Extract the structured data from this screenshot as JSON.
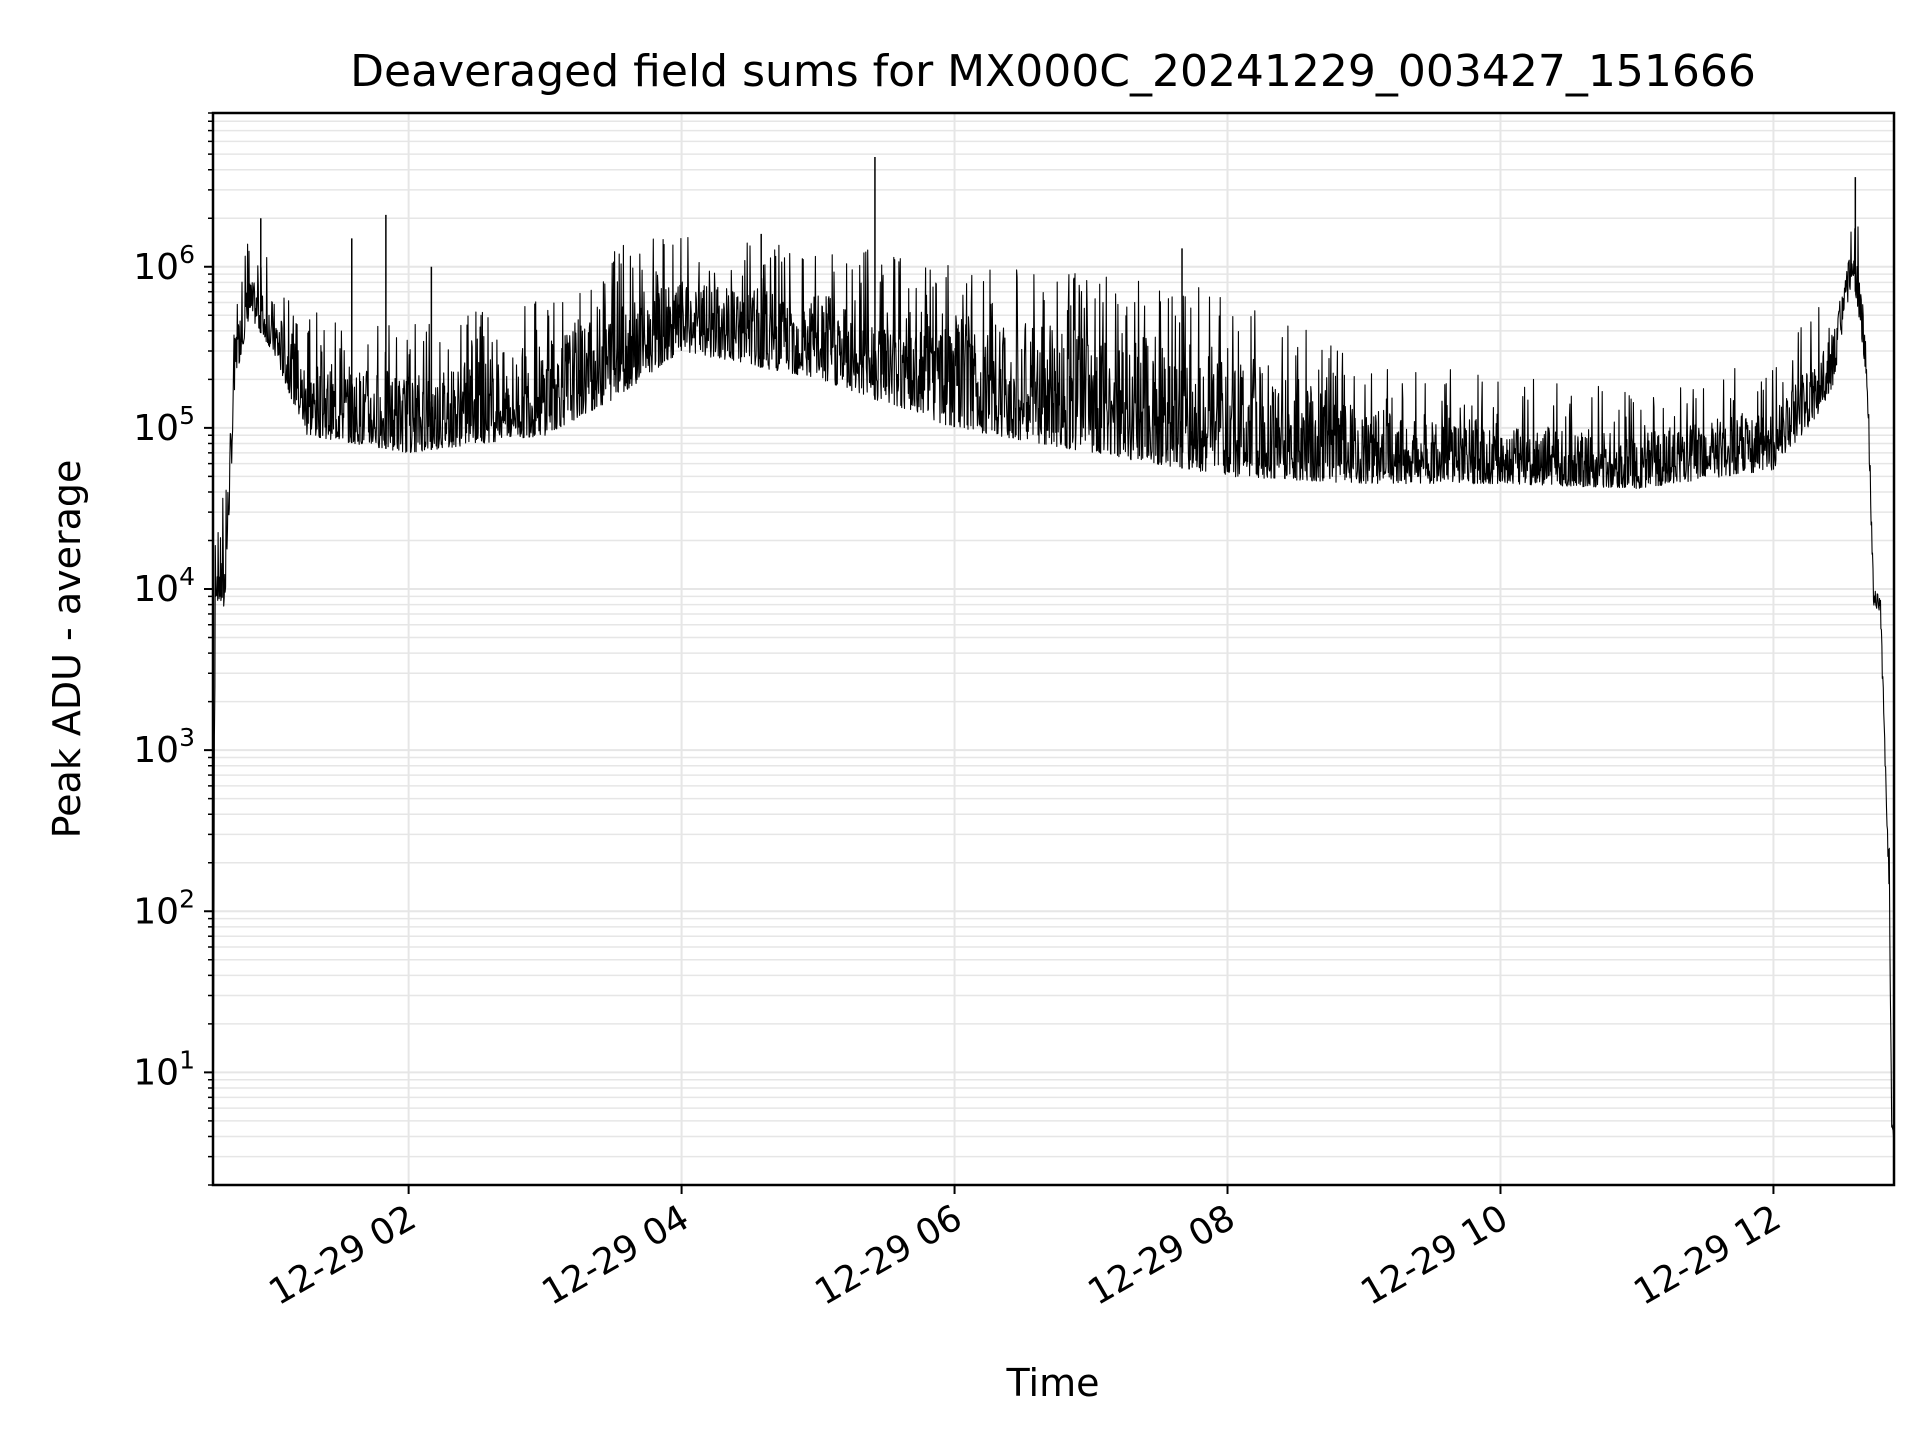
{
  "chart_data": {
    "type": "line",
    "title": "Deaveraged field sums for MX000C_20241229_003427_151666",
    "xlabel": "Time",
    "ylabel": "Peak ADU - average",
    "y_scale": "log",
    "ylim": [
      2,
      9000000
    ],
    "xlim": [
      "2024-12-29 00:34",
      "2024-12-29 12:53"
    ],
    "grid": "both-major-and-minor",
    "line_color": "#000000",
    "grid_color": "#e6e6e6",
    "x_ticks": [
      {
        "value": "2024-12-29 02:00",
        "label": "12-29 02"
      },
      {
        "value": "2024-12-29 04:00",
        "label": "12-29 04"
      },
      {
        "value": "2024-12-29 06:00",
        "label": "12-29 06"
      },
      {
        "value": "2024-12-29 08:00",
        "label": "12-29 08"
      },
      {
        "value": "2024-12-29 10:00",
        "label": "12-29 10"
      },
      {
        "value": "2024-12-29 12:00",
        "label": "12-29 12"
      }
    ],
    "y_ticks": [
      {
        "value": 10,
        "base": "10",
        "exp": "1"
      },
      {
        "value": 100,
        "base": "10",
        "exp": "2"
      },
      {
        "value": 1000,
        "base": "10",
        "exp": "3"
      },
      {
        "value": 10000,
        "base": "10",
        "exp": "4"
      },
      {
        "value": 100000,
        "base": "10",
        "exp": "5"
      },
      {
        "value": 1000000,
        "base": "10",
        "exp": "6"
      }
    ],
    "series": [
      {
        "envelope": [
          {
            "x": "2024-12-29 00:34",
            "low": 2,
            "high": 2
          },
          {
            "x": "2024-12-29 00:35",
            "low": 9000,
            "high": 30000
          },
          {
            "x": "2024-12-29 00:39",
            "low": 7000,
            "high": 20000
          },
          {
            "x": "2024-12-29 00:44",
            "low": 200000,
            "high": 500000
          },
          {
            "x": "2024-12-29 00:50",
            "low": 500000,
            "high": 900000
          },
          {
            "x": "2024-12-29 01:00",
            "low": 300000,
            "high": 700000
          },
          {
            "x": "2024-12-29 01:15",
            "low": 90000,
            "high": 300000
          },
          {
            "x": "2024-12-29 02:00",
            "low": 70000,
            "high": 250000
          },
          {
            "x": "2024-12-29 03:00",
            "low": 90000,
            "high": 400000
          },
          {
            "x": "2024-12-29 03:30",
            "low": 150000,
            "high": 800000
          },
          {
            "x": "2024-12-29 04:00",
            "low": 300000,
            "high": 900000
          },
          {
            "x": "2024-12-29 05:00",
            "low": 200000,
            "high": 800000
          },
          {
            "x": "2024-12-29 06:00",
            "low": 100000,
            "high": 600000
          },
          {
            "x": "2024-12-29 07:00",
            "low": 70000,
            "high": 500000
          },
          {
            "x": "2024-12-29 08:00",
            "low": 50000,
            "high": 400000
          },
          {
            "x": "2024-12-29 09:00",
            "low": 45000,
            "high": 150000
          },
          {
            "x": "2024-12-29 10:00",
            "low": 45000,
            "high": 120000
          },
          {
            "x": "2024-12-29 11:00",
            "low": 42000,
            "high": 100000
          },
          {
            "x": "2024-12-29 12:00",
            "low": 55000,
            "high": 150000
          },
          {
            "x": "2024-12-29 12:25",
            "low": 150000,
            "high": 400000
          },
          {
            "x": "2024-12-29 12:35",
            "low": 900000,
            "high": 1500000
          },
          {
            "x": "2024-12-29 12:41",
            "low": 200000,
            "high": 500000
          },
          {
            "x": "2024-12-29 12:44",
            "low": 8000,
            "high": 10000
          },
          {
            "x": "2024-12-29 12:47",
            "low": 7000,
            "high": 9000
          },
          {
            "x": "2024-12-29 12:51",
            "low": 100,
            "high": 200
          },
          {
            "x": "2024-12-29 12:52",
            "low": 4,
            "high": 5
          },
          {
            "x": "2024-12-29 12:53",
            "low": 4,
            "high": 4
          }
        ],
        "spikes": [
          {
            "x": "2024-12-29 00:55",
            "y": 2000000
          },
          {
            "x": "2024-12-29 01:35",
            "y": 1500000
          },
          {
            "x": "2024-12-29 01:50",
            "y": 2100000
          },
          {
            "x": "2024-12-29 02:10",
            "y": 1000000
          },
          {
            "x": "2024-12-29 04:35",
            "y": 1600000
          },
          {
            "x": "2024-12-29 05:25",
            "y": 4800000
          },
          {
            "x": "2024-12-29 07:40",
            "y": 1300000
          },
          {
            "x": "2024-12-29 12:36",
            "y": 3600000
          }
        ]
      }
    ]
  }
}
